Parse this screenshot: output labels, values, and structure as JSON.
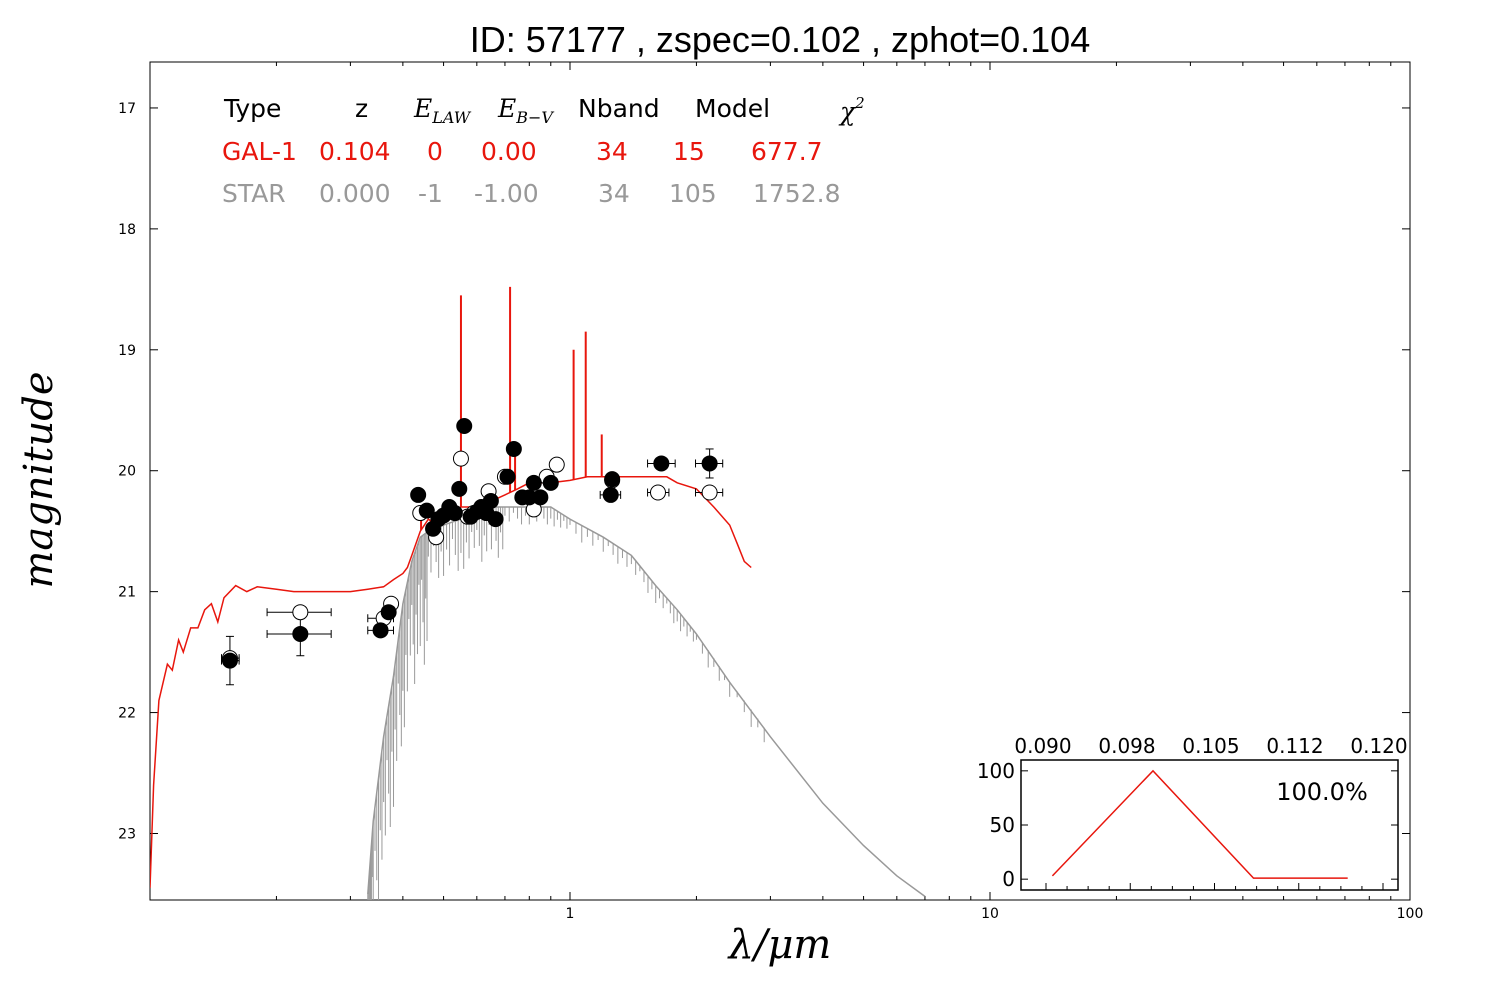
{
  "title": "ID:  57177 , zspec=0.102 , zphot=0.104",
  "colors": {
    "galaxy": "#e8160d",
    "star": "#999999",
    "frame": "#000000"
  },
  "chart_data": [
    {
      "type": "scatter",
      "xlabel": "λ/μm",
      "ylabel": "magnitude",
      "xscale": "log",
      "xlim": [
        0.1,
        100
      ],
      "ylim": [
        23.55,
        16.62
      ],
      "x_tick_labels": [
        "1",
        "10",
        "100"
      ],
      "x_ticks": [
        1,
        10,
        100
      ],
      "y_ticks": [
        17,
        18,
        19,
        20,
        21,
        22,
        23
      ],
      "fit_table": {
        "headers": [
          "Type",
          "z",
          "E_LAW",
          "E_B−V",
          "Nband",
          "Model",
          "χ²"
        ],
        "rows": [
          {
            "type": "GAL-1",
            "z": "0.104",
            "elaw": "0",
            "ebv": "0.00",
            "nband": "34",
            "model": "15",
            "chi2": "677.7",
            "color": "#e8160d"
          },
          {
            "type": "STAR",
            "z": "0.000",
            "elaw": "-1",
            "ebv": "-1.00",
            "nband": "34",
            "model": "105",
            "chi2": "1752.8",
            "color": "#999999"
          }
        ]
      },
      "series": [
        {
          "name": "GAL-1",
          "kind": "line",
          "color": "#e8160d",
          "x": [
            0.1,
            0.102,
            0.105,
            0.11,
            0.113,
            0.117,
            0.12,
            0.125,
            0.13,
            0.135,
            0.14,
            0.145,
            0.15,
            0.16,
            0.17,
            0.18,
            0.2,
            0.22,
            0.25,
            0.28,
            0.3,
            0.33,
            0.36,
            0.38,
            0.4,
            0.41,
            0.42,
            0.44,
            0.46,
            0.48,
            0.5,
            0.55,
            0.6,
            0.65,
            0.7,
            0.75,
            0.8,
            0.85,
            0.9,
            1.0,
            1.1,
            1.2,
            1.3,
            1.5,
            1.7,
            1.8,
            2.0,
            2.2,
            2.4,
            2.5,
            2.6,
            2.7
          ],
          "y": [
            23.45,
            22.6,
            21.9,
            21.6,
            21.65,
            21.4,
            21.5,
            21.3,
            21.3,
            21.15,
            21.1,
            21.25,
            21.05,
            20.95,
            21.0,
            20.96,
            20.98,
            21.0,
            21.0,
            21.0,
            21.0,
            20.98,
            20.96,
            20.9,
            20.85,
            20.8,
            20.7,
            20.5,
            20.4,
            20.45,
            20.35,
            20.3,
            20.3,
            20.25,
            20.2,
            20.15,
            20.1,
            20.1,
            20.1,
            20.08,
            20.05,
            20.05,
            20.05,
            20.05,
            20.05,
            20.1,
            20.15,
            20.3,
            20.45,
            20.6,
            20.75,
            20.8
          ],
          "emission_lines": [
            {
              "x": 0.442,
              "peak": 20.4
            },
            {
              "x": 0.55,
              "peak": 18.55
            },
            {
              "x": 0.72,
              "peak": 18.48
            },
            {
              "x": 0.74,
              "peak": 19.8
            },
            {
              "x": 1.02,
              "peak": 19.0
            },
            {
              "x": 1.09,
              "peak": 18.85
            },
            {
              "x": 1.19,
              "peak": 19.7
            }
          ]
        },
        {
          "name": "STAR",
          "kind": "line",
          "color": "#999999",
          "x": [
            0.33,
            0.34,
            0.36,
            0.38,
            0.4,
            0.42,
            0.44,
            0.46,
            0.5,
            0.55,
            0.6,
            0.65,
            0.7,
            0.8,
            0.9,
            1.0,
            1.2,
            1.4,
            1.6,
            1.8,
            2.0,
            2.4,
            3.0,
            4.0,
            5.0,
            6.0,
            7.0
          ],
          "y": [
            23.5,
            22.9,
            22.2,
            21.7,
            21.1,
            20.75,
            20.55,
            20.5,
            20.45,
            20.4,
            20.35,
            20.3,
            20.3,
            20.3,
            20.3,
            20.4,
            20.55,
            20.7,
            20.95,
            21.15,
            21.35,
            21.75,
            22.2,
            22.75,
            23.1,
            23.35,
            23.52
          ]
        },
        {
          "name": "filled",
          "kind": "points",
          "fill": "#000000",
          "points": [
            {
              "x": 0.155,
              "y": 21.57,
              "xerr": [
                0.148,
                0.163
              ],
              "yerr": 0.2
            },
            {
              "x": 0.228,
              "y": 21.35,
              "xerr": [
                0.19,
                0.27
              ],
              "yerr": 0.18
            },
            {
              "x": 0.354,
              "y": 21.32,
              "xerr": [
                0.33,
                0.38
              ]
            },
            {
              "x": 0.37,
              "y": 21.17
            },
            {
              "x": 0.435,
              "y": 20.2
            },
            {
              "x": 0.456,
              "y": 20.33
            },
            {
              "x": 0.472,
              "y": 20.48
            },
            {
              "x": 0.486,
              "y": 20.4
            },
            {
              "x": 0.5,
              "y": 20.37
            },
            {
              "x": 0.516,
              "y": 20.3
            },
            {
              "x": 0.532,
              "y": 20.35
            },
            {
              "x": 0.545,
              "y": 20.15
            },
            {
              "x": 0.56,
              "y": 19.63
            },
            {
              "x": 0.58,
              "y": 20.38
            },
            {
              "x": 0.6,
              "y": 20.34
            },
            {
              "x": 0.615,
              "y": 20.3
            },
            {
              "x": 0.632,
              "y": 20.35
            },
            {
              "x": 0.648,
              "y": 20.25
            },
            {
              "x": 0.665,
              "y": 20.4
            },
            {
              "x": 0.71,
              "y": 20.05
            },
            {
              "x": 0.735,
              "y": 19.82
            },
            {
              "x": 0.77,
              "y": 20.22
            },
            {
              "x": 0.8,
              "y": 20.22
            },
            {
              "x": 0.82,
              "y": 20.1
            },
            {
              "x": 0.85,
              "y": 20.22
            },
            {
              "x": 0.9,
              "y": 20.1
            },
            {
              "x": 1.25,
              "y": 20.2,
              "xerr": [
                1.18,
                1.32
              ],
              "yerr": 0.05
            },
            {
              "x": 1.26,
              "y": 20.07
            },
            {
              "x": 1.65,
              "y": 19.94,
              "xerr": [
                1.53,
                1.78
              ],
              "yerr": 0.04
            },
            {
              "x": 2.15,
              "y": 19.94,
              "xerr": [
                1.99,
                2.31
              ],
              "yerr": 0.12
            }
          ]
        },
        {
          "name": "open",
          "kind": "points",
          "fill": "#ffffff",
          "points": [
            {
              "x": 0.155,
              "y": 21.55,
              "xerr": [
                0.148,
                0.163
              ]
            },
            {
              "x": 0.228,
              "y": 21.17,
              "xerr": [
                0.19,
                0.27
              ]
            },
            {
              "x": 0.36,
              "y": 21.22,
              "xerr": [
                0.33,
                0.38
              ]
            },
            {
              "x": 0.375,
              "y": 21.1
            },
            {
              "x": 0.44,
              "y": 20.35
            },
            {
              "x": 0.48,
              "y": 20.55
            },
            {
              "x": 0.55,
              "y": 19.9
            },
            {
              "x": 0.57,
              "y": 20.38
            },
            {
              "x": 0.59,
              "y": 20.35
            },
            {
              "x": 0.64,
              "y": 20.17
            },
            {
              "x": 0.7,
              "y": 20.05
            },
            {
              "x": 0.82,
              "y": 20.32
            },
            {
              "x": 0.88,
              "y": 20.05
            },
            {
              "x": 0.93,
              "y": 19.95
            },
            {
              "x": 1.26,
              "y": 20.08
            },
            {
              "x": 1.62,
              "y": 20.18,
              "xerr": [
                1.53,
                1.72
              ]
            },
            {
              "x": 2.15,
              "y": 20.18,
              "xerr": [
                1.99,
                2.31
              ]
            }
          ]
        }
      ]
    },
    {
      "type": "line",
      "role": "inset",
      "x_tick_labels": [
        "0.090",
        "0.098",
        "0.105",
        "0.112",
        "0.120"
      ],
      "xlim": [
        0.09,
        0.12
      ],
      "ylim": [
        -10,
        110
      ],
      "y_ticks": [
        0,
        50,
        100
      ],
      "annotation": "100.0%",
      "series": [
        {
          "color": "#e8160d",
          "x": [
            0.0925,
            0.1005,
            0.1085,
            0.116
          ],
          "y": [
            3,
            100,
            1,
            1
          ]
        }
      ]
    }
  ]
}
